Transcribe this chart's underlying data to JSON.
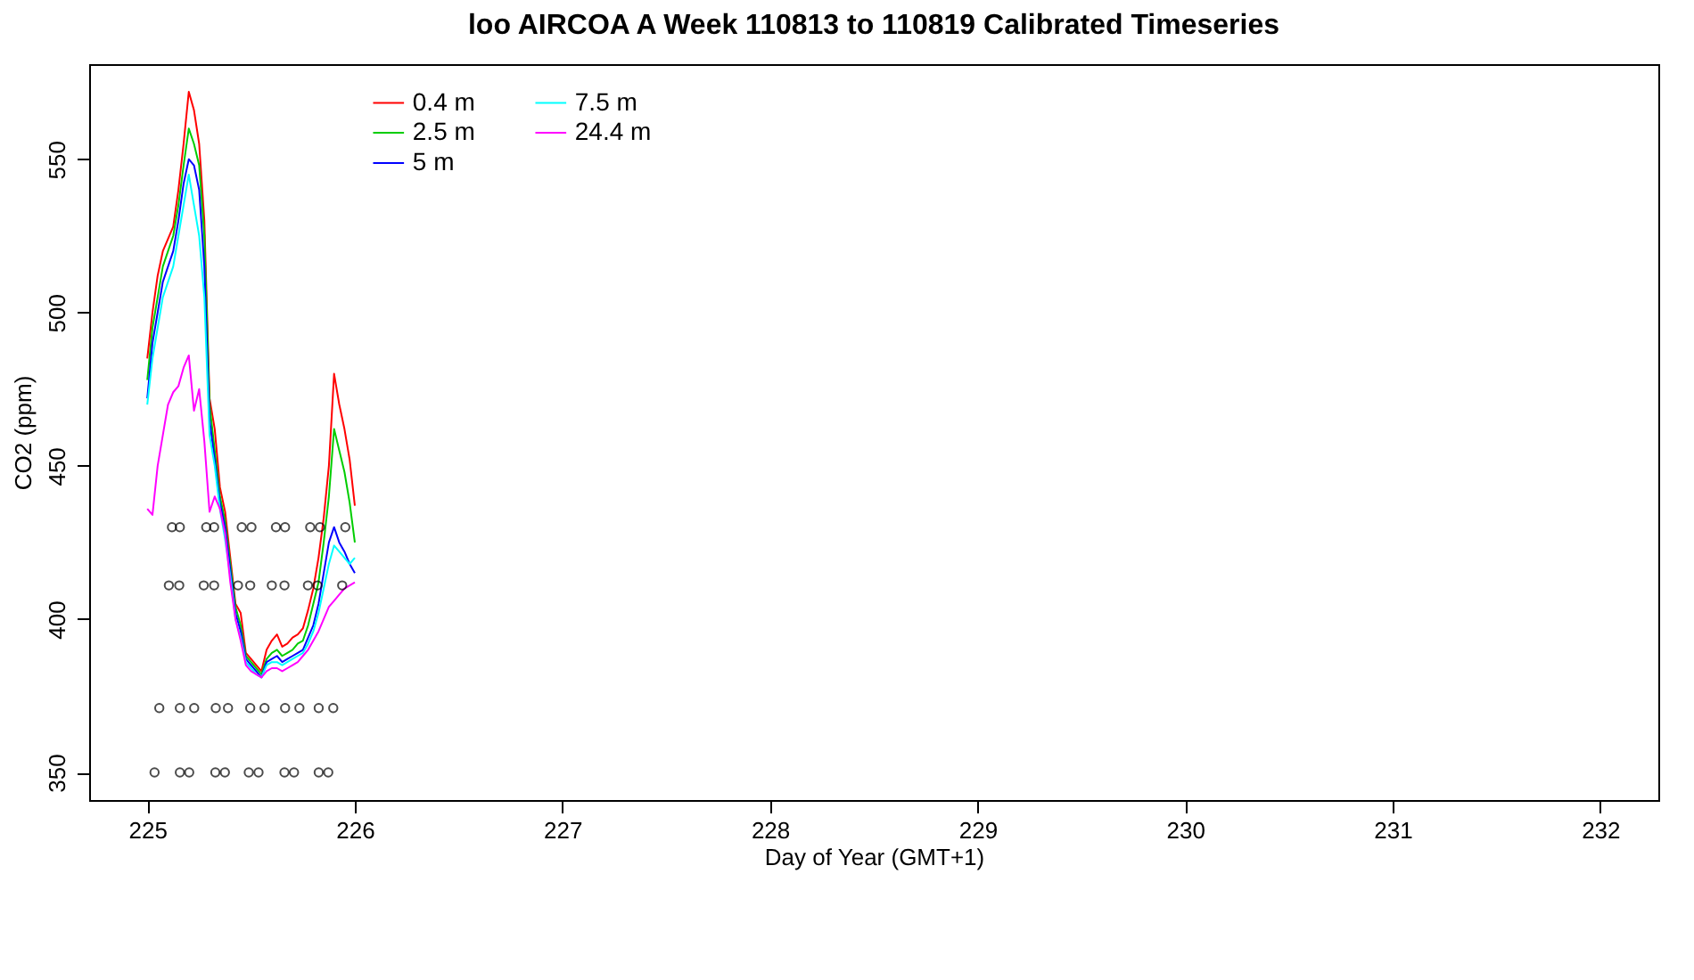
{
  "chart_data": {
    "type": "line",
    "title": "loo AIRCOA A  Week 110813 to 110819  Calibrated Timeseries",
    "xlabel": "Day of Year (GMT+1)",
    "ylabel": "CO2 (ppm)",
    "xlim": [
      224.72,
      232.28
    ],
    "xticks": [
      225,
      226,
      227,
      228,
      229,
      230,
      231,
      232
    ],
    "ylim": [
      341,
      581
    ],
    "yticks": [
      350,
      400,
      450,
      500,
      550
    ],
    "legend": "top left",
    "x": [
      225.0,
      225.025,
      225.05,
      225.075,
      225.1,
      225.125,
      225.15,
      225.175,
      225.2,
      225.225,
      225.25,
      225.275,
      225.3,
      225.325,
      225.35,
      225.375,
      225.4,
      225.425,
      225.45,
      225.475,
      225.5,
      225.525,
      225.55,
      225.575,
      225.6,
      225.625,
      225.65,
      225.675,
      225.7,
      225.725,
      225.75,
      225.775,
      225.8,
      225.825,
      225.85,
      225.875,
      225.9,
      225.925,
      225.95,
      225.975,
      226.0
    ],
    "series": [
      {
        "name": "0.4 m",
        "color": "#ff0000",
        "values": [
          485,
          500,
          512,
          520,
          524,
          528,
          540,
          555,
          572,
          566,
          555,
          530,
          472,
          462,
          443,
          435,
          420,
          405,
          402,
          389,
          387,
          385,
          383,
          390,
          393,
          395,
          391,
          392,
          394,
          395,
          397,
          403,
          410,
          420,
          433,
          450,
          480,
          470,
          462,
          452,
          437
        ]
      },
      {
        "name": "2.5 m",
        "color": "#00cd00",
        "values": [
          478,
          495,
          505,
          515,
          520,
          525,
          535,
          548,
          560,
          555,
          548,
          525,
          470,
          455,
          440,
          432,
          418,
          404,
          398,
          388,
          386,
          384,
          382,
          387,
          389,
          390,
          388,
          389,
          390,
          392,
          393,
          398,
          405,
          412,
          425,
          440,
          462,
          455,
          448,
          438,
          425
        ]
      },
      {
        "name": "5 m",
        "color": "#0000ff",
        "values": [
          472,
          490,
          500,
          510,
          515,
          520,
          530,
          542,
          550,
          548,
          540,
          515,
          465,
          452,
          438,
          430,
          416,
          402,
          396,
          387,
          385,
          383,
          381,
          386,
          387,
          388,
          386,
          387,
          388,
          389,
          390,
          394,
          398,
          405,
          415,
          425,
          430,
          425,
          422,
          418,
          415
        ]
      },
      {
        "name": "7.5 m",
        "color": "#00ffff",
        "values": [
          470,
          485,
          495,
          505,
          510,
          515,
          525,
          535,
          545,
          535,
          525,
          505,
          460,
          450,
          436,
          426,
          414,
          400,
          394,
          386,
          384,
          382,
          381,
          385,
          386,
          386,
          385,
          386,
          387,
          388,
          389,
          392,
          396,
          402,
          410,
          418,
          424,
          422,
          420,
          418,
          420
        ]
      },
      {
        "name": "24.4 m",
        "color": "#ff00ff",
        "values": [
          436,
          434,
          450,
          460,
          470,
          474,
          476,
          482,
          486,
          468,
          475,
          458,
          435,
          440,
          436,
          428,
          412,
          400,
          393,
          385,
          383,
          382,
          381,
          383,
          384,
          384,
          383,
          384,
          385,
          386,
          388,
          390,
          393,
          396,
          400,
          404,
          406,
          408,
          410,
          411,
          412
        ]
      },
      {
        "type": "scatter",
        "marker": "circle",
        "color": "#000000",
        "x": [
          225.035,
          225.157,
          225.202,
          225.328,
          225.374,
          225.489,
          225.536,
          225.661,
          225.707,
          225.826,
          225.872,
          225.058,
          225.157,
          225.226,
          225.33,
          225.389,
          225.496,
          225.565,
          225.664,
          225.733,
          225.826,
          225.896,
          225.104,
          225.154,
          225.272,
          225.322,
          225.437,
          225.496,
          225.6,
          225.661,
          225.774,
          225.82,
          225.939,
          225.119,
          225.157,
          225.284,
          225.322,
          225.455,
          225.502,
          225.62,
          225.664,
          225.785,
          225.832,
          225.954
        ],
        "values": [
          350,
          350,
          350,
          350,
          350,
          350,
          350,
          350,
          350,
          350,
          350,
          371,
          371,
          371,
          371,
          371,
          371,
          371,
          371,
          371,
          371,
          371,
          411,
          411,
          411,
          411,
          411,
          411,
          411,
          411,
          411,
          411,
          411,
          430,
          430,
          430,
          430,
          430,
          430,
          430,
          430,
          430,
          430,
          430
        ]
      }
    ]
  }
}
